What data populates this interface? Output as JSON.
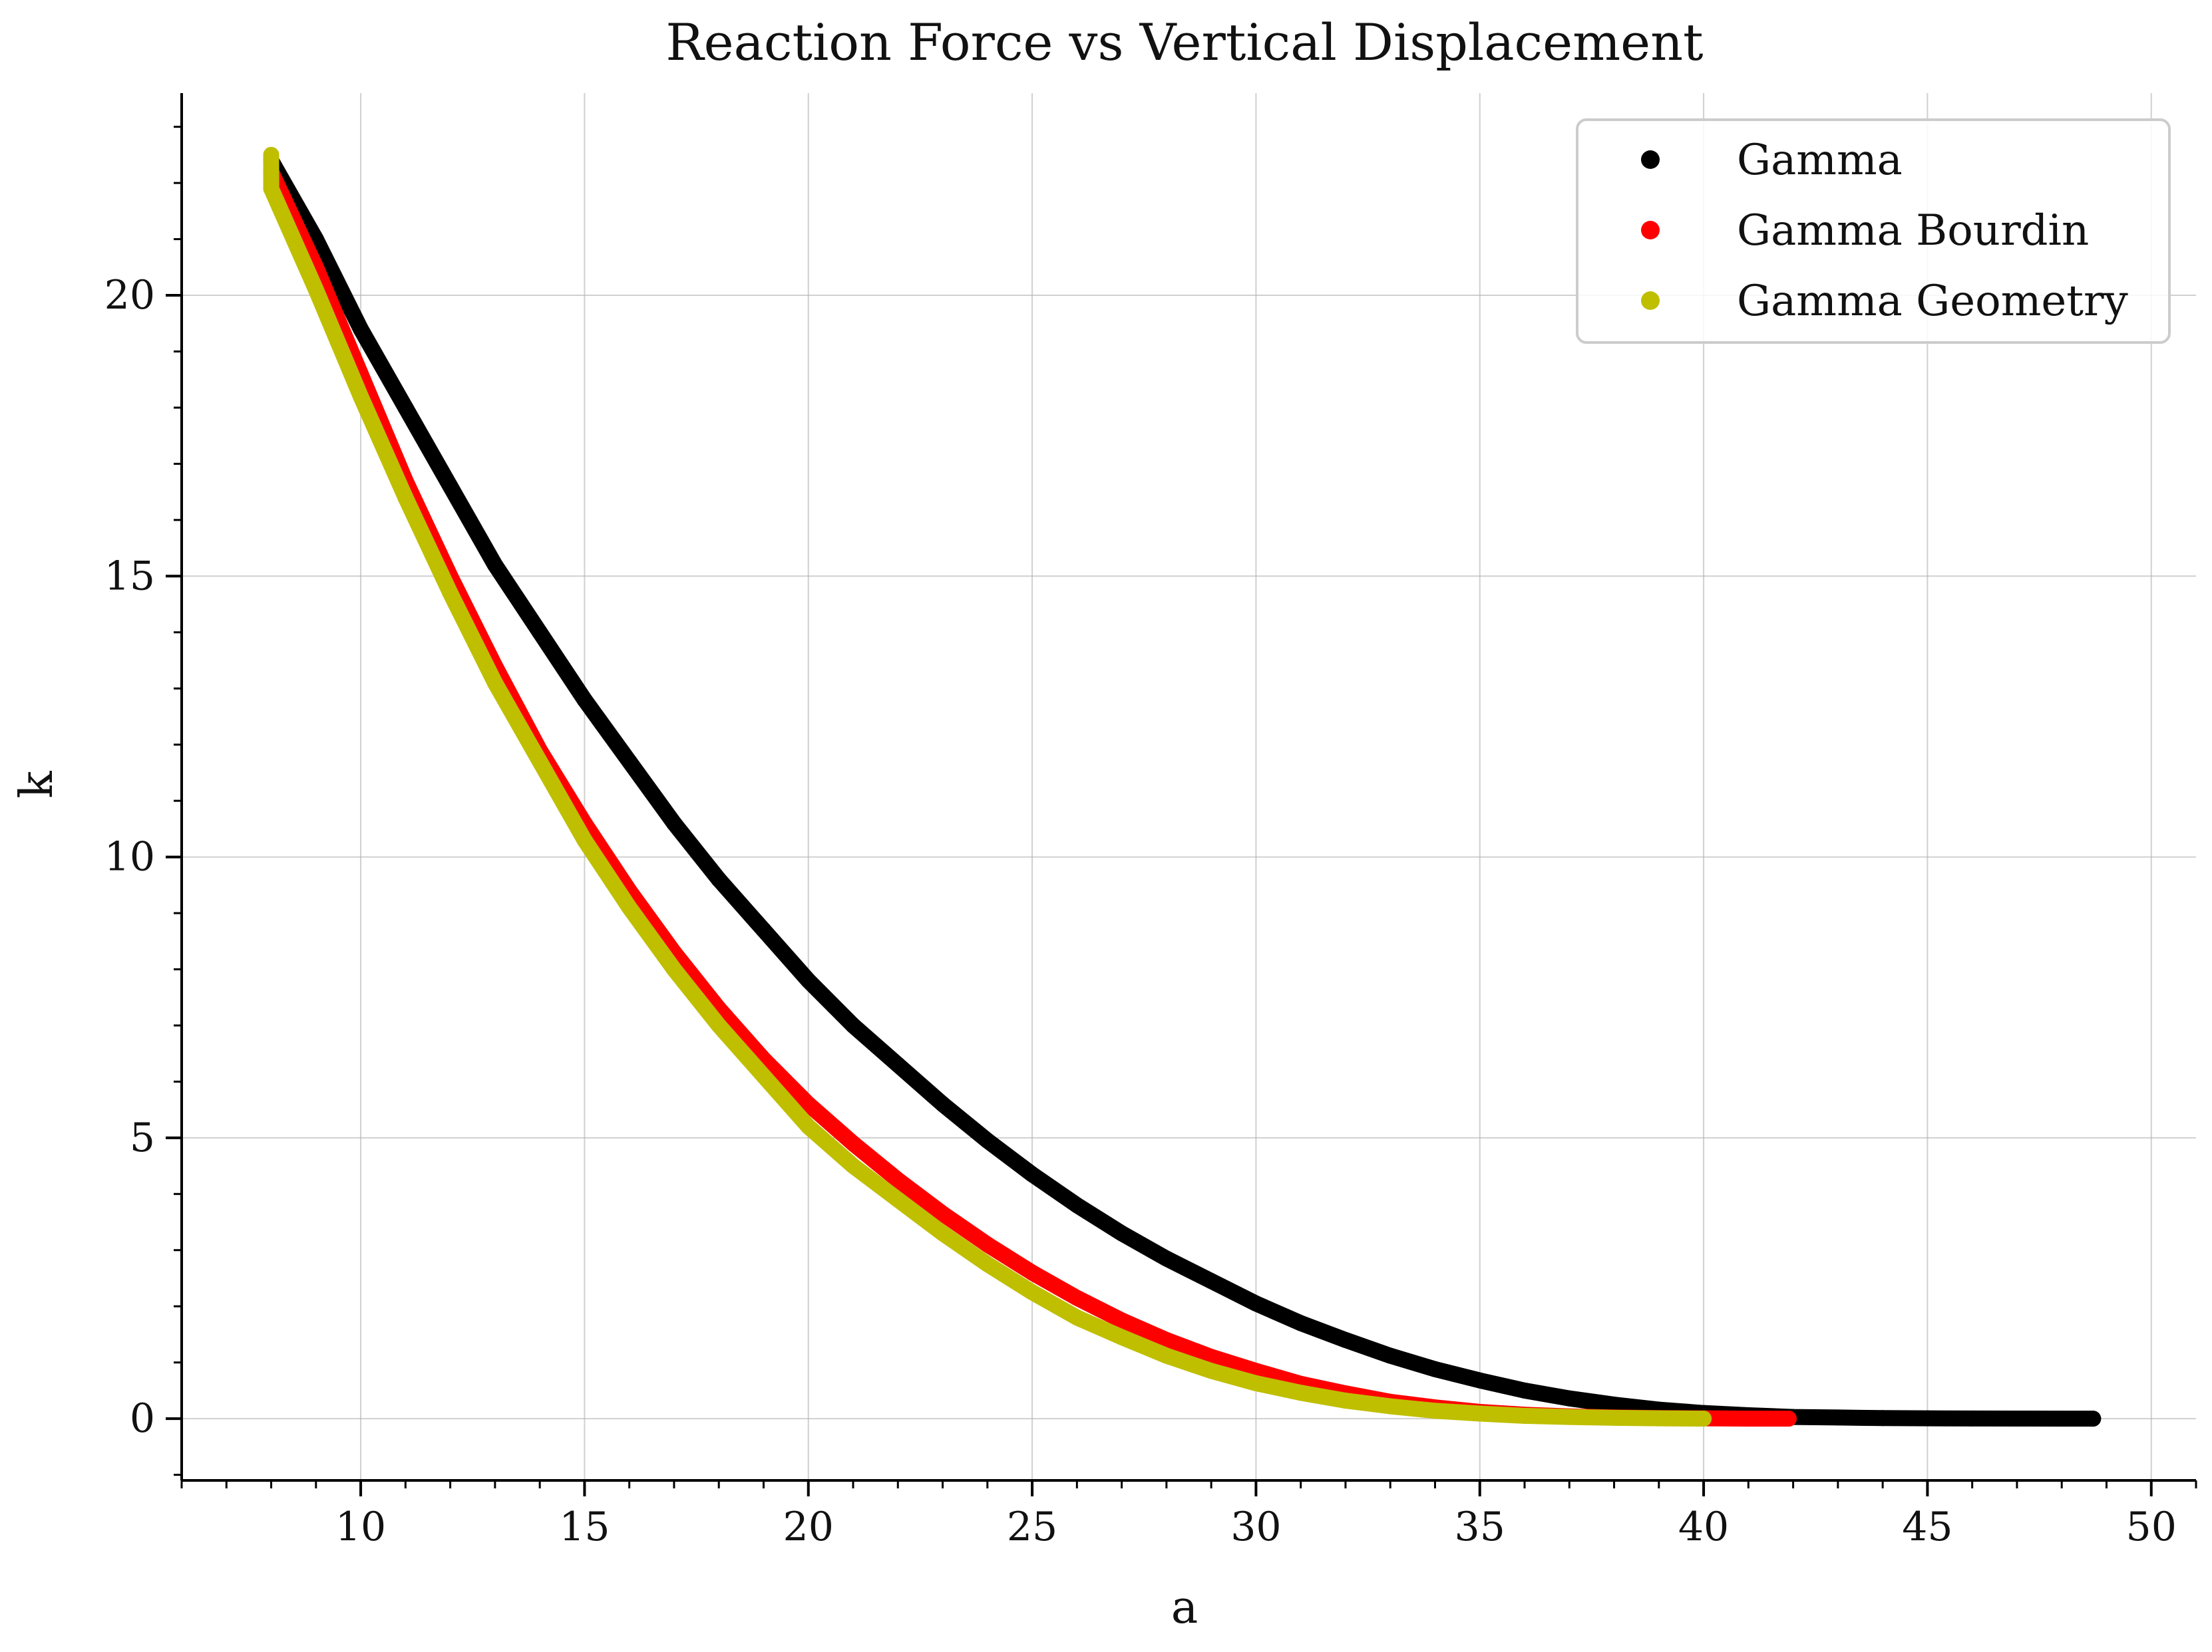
{
  "chart_data": {
    "type": "scatter",
    "title": "Reaction Force vs Vertical Displacement",
    "xlabel": "a",
    "ylabel": "k",
    "xlim": [
      6,
      51
    ],
    "ylim": [
      -1.1,
      23.6
    ],
    "x_ticks": [
      10,
      15,
      20,
      25,
      30,
      35,
      40,
      45,
      50
    ],
    "y_ticks": [
      0,
      5,
      10,
      15,
      20
    ],
    "x_minor_step": 1,
    "y_minor_step": 1,
    "grid": true,
    "legend_position": "top-right",
    "series": [
      {
        "name": "Gamma",
        "color": "#000000",
        "x": [
          8,
          9,
          10,
          11,
          12,
          13,
          14,
          15,
          16,
          17,
          18,
          19,
          20,
          21,
          22,
          23,
          24,
          25,
          26,
          27,
          28,
          29,
          30,
          31,
          32,
          33,
          34,
          35,
          36,
          37,
          38,
          39,
          40,
          41,
          42,
          43,
          44,
          45,
          46,
          47,
          48,
          48.7
        ],
        "y": [
          22.4,
          21.0,
          19.4,
          18.0,
          16.6,
          15.2,
          14.0,
          12.8,
          11.7,
          10.6,
          9.6,
          8.7,
          7.8,
          7.0,
          6.3,
          5.6,
          4.95,
          4.35,
          3.8,
          3.3,
          2.85,
          2.45,
          2.05,
          1.7,
          1.4,
          1.12,
          0.88,
          0.68,
          0.5,
          0.36,
          0.25,
          0.16,
          0.1,
          0.06,
          0.03,
          0.02,
          0.01,
          0.005,
          0.002,
          0.001,
          0.0,
          0.0
        ]
      },
      {
        "name": "Gamma Bourdin",
        "color": "#ff0000",
        "x": [
          8,
          9,
          10,
          11,
          12,
          13,
          14,
          15,
          16,
          17,
          18,
          19,
          20,
          21,
          22,
          23,
          24,
          25,
          26,
          27,
          28,
          29,
          30,
          31,
          32,
          33,
          34,
          35,
          36,
          37,
          38,
          39,
          40,
          41,
          41.9
        ],
        "y": [
          22.2,
          20.5,
          18.6,
          16.7,
          15.0,
          13.4,
          11.9,
          10.6,
          9.4,
          8.3,
          7.3,
          6.4,
          5.6,
          4.9,
          4.25,
          3.65,
          3.1,
          2.6,
          2.15,
          1.75,
          1.4,
          1.1,
          0.85,
          0.62,
          0.45,
          0.3,
          0.2,
          0.12,
          0.07,
          0.04,
          0.02,
          0.01,
          0.005,
          0.0,
          0.0
        ]
      },
      {
        "name": "Gamma Geometry",
        "color": "#bfbf00",
        "x": [
          8,
          8,
          9,
          10,
          11,
          12,
          13,
          14,
          15,
          16,
          17,
          18,
          19,
          20,
          21,
          22,
          23,
          24,
          25,
          26,
          27,
          28,
          29,
          30,
          31,
          32,
          33,
          34,
          35,
          36,
          37,
          38,
          39,
          40
        ],
        "y": [
          22.5,
          21.9,
          20.1,
          18.2,
          16.4,
          14.7,
          13.1,
          11.7,
          10.3,
          9.1,
          8.0,
          7.0,
          6.1,
          5.2,
          4.5,
          3.9,
          3.3,
          2.75,
          2.25,
          1.8,
          1.45,
          1.12,
          0.85,
          0.63,
          0.46,
          0.32,
          0.22,
          0.14,
          0.09,
          0.05,
          0.03,
          0.015,
          0.005,
          0.0
        ]
      }
    ]
  }
}
